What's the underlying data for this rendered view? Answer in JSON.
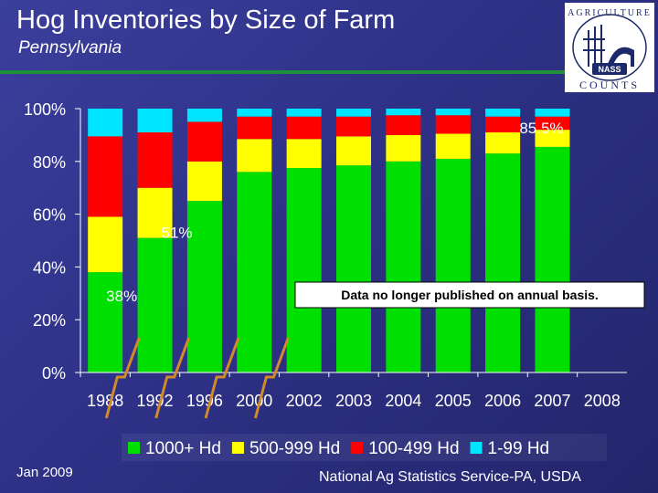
{
  "header": {
    "title": "Hog Inventories by Size of Farm",
    "subtitle": "Pennsylvania"
  },
  "logo": {
    "icon": "agriculture-counts-nass-logo",
    "top_text": "AGRICULTURE",
    "bottom_text": "COUNTS",
    "badge": "NASS"
  },
  "footer": {
    "date": "Jan 2009",
    "source": "National Ag Statistics Service-PA, USDA"
  },
  "chart_data": {
    "type": "bar",
    "stacked": true,
    "title": "",
    "xlabel": "",
    "ylabel": "",
    "categories": [
      "1988",
      "1992",
      "1996",
      "2000",
      "2002",
      "2003",
      "2004",
      "2005",
      "2006",
      "2007",
      "2008"
    ],
    "ylim": [
      0,
      100
    ],
    "yticks": [
      "0%",
      "20%",
      "40%",
      "60%",
      "80%",
      "100%"
    ],
    "legend_position": "bottom",
    "grid": false,
    "series": [
      {
        "name": "1000+ Hd",
        "color": "#00e000",
        "values": [
          38,
          51,
          65,
          76,
          77.5,
          78.5,
          80,
          81,
          83,
          85.5,
          null
        ]
      },
      {
        "name": "500-999 Hd",
        "color": "#ffff00",
        "values": [
          21,
          19,
          15,
          12.5,
          11,
          11,
          10,
          9.5,
          8,
          6.5,
          null
        ]
      },
      {
        "name": "100-499 Hd",
        "color": "#ff0000",
        "values": [
          30.5,
          21,
          15,
          8.5,
          8.5,
          7.5,
          7.5,
          7,
          6,
          5,
          null
        ]
      },
      {
        "name": "1-99 Hd",
        "color": "#00e5ff",
        "values": [
          10.5,
          9,
          5,
          3,
          3,
          3,
          2.5,
          2.5,
          3,
          3,
          null
        ]
      }
    ],
    "annotations": [
      {
        "text": "38%",
        "category": "1988",
        "value": 38
      },
      {
        "text": "51%",
        "category": "1992",
        "value": 51
      },
      {
        "text": "85.5%",
        "category": "2007",
        "value": 85.5
      }
    ],
    "note": "Data no longer published on annual basis."
  }
}
